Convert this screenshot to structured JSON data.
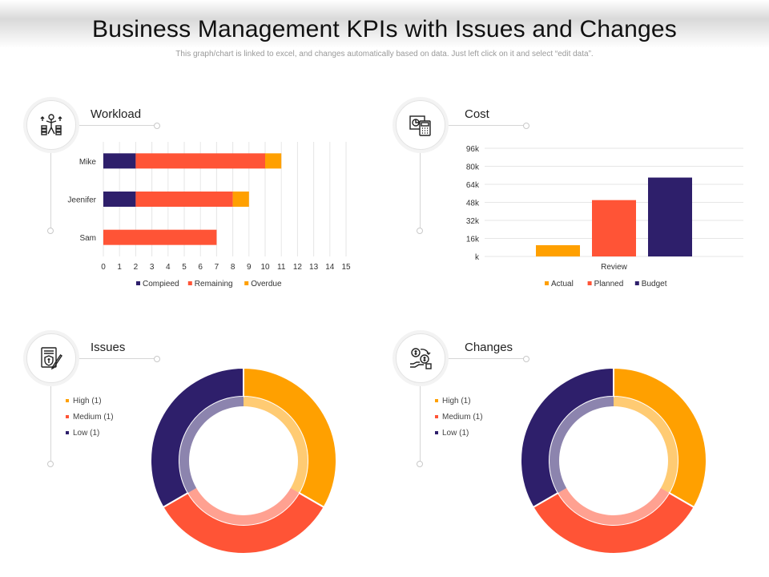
{
  "header": {
    "title": "Business Management KPIs with Issues and Changes",
    "subtitle": "This graph/chart is linked to excel, and changes automatically based on data. Just left click on it and select “edit data”."
  },
  "colors": {
    "navy": "#2e1f6b",
    "orange_red": "#ff5436",
    "amber": "#ffa000",
    "grid": "#e6e6e6"
  },
  "panels": {
    "workload": {
      "title": "Workload",
      "icon": "person-juggling-coins-icon"
    },
    "cost": {
      "title": "Cost",
      "icon": "calculator-invoice-icon"
    },
    "issues": {
      "title": "Issues",
      "icon": "shield-document-pen-icon"
    },
    "changes": {
      "title": "Changes",
      "icon": "money-exchange-hand-icon"
    }
  },
  "chart_data": [
    {
      "id": "workload",
      "type": "bar",
      "orientation": "horizontal",
      "stacked": true,
      "categories": [
        "Mike",
        "Jeenifer",
        "Sam"
      ],
      "series": [
        {
          "name": "Compieed",
          "color": "#2e1f6b",
          "values": [
            2,
            2,
            0
          ]
        },
        {
          "name": "Remaining",
          "color": "#ff5436",
          "values": [
            8,
            6,
            7
          ]
        },
        {
          "name": "Overdue",
          "color": "#ffa000",
          "values": [
            1,
            1,
            0
          ]
        }
      ],
      "xlim": [
        0,
        15
      ],
      "xticks": [
        "0",
        "1",
        "2",
        "3",
        "4",
        "5",
        "6",
        "7",
        "8",
        "9",
        "10",
        "11",
        "12",
        "13",
        "14",
        "15"
      ],
      "grid": true,
      "legend": "bottom"
    },
    {
      "id": "cost",
      "type": "bar",
      "categories": [
        "Review"
      ],
      "series": [
        {
          "name": "Actual",
          "color": "#ffa000",
          "values": [
            10000
          ]
        },
        {
          "name": "Planned",
          "color": "#ff5436",
          "values": [
            50000
          ]
        },
        {
          "name": "Budget",
          "color": "#2e1f6b",
          "values": [
            70000
          ]
        }
      ],
      "ylim": [
        0,
        96000
      ],
      "yticks": [
        "k",
        "16k",
        "32k",
        "48k",
        "64k",
        "80k",
        "96k"
      ],
      "grid": true,
      "legend": "bottom"
    },
    {
      "id": "issues",
      "type": "pie",
      "donut": true,
      "labels": [
        "High (1)",
        "Medium (1)",
        "Low (1)"
      ],
      "values": [
        1,
        1,
        1
      ],
      "colors": [
        "#ffa000",
        "#ff5436",
        "#2e1f6b"
      ],
      "legend": "left"
    },
    {
      "id": "changes",
      "type": "pie",
      "donut": true,
      "labels": [
        "High (1)",
        "Medium (1)",
        "Low (1)"
      ],
      "values": [
        1,
        1,
        1
      ],
      "colors": [
        "#ffa000",
        "#ff5436",
        "#2e1f6b"
      ],
      "legend": "left"
    }
  ]
}
